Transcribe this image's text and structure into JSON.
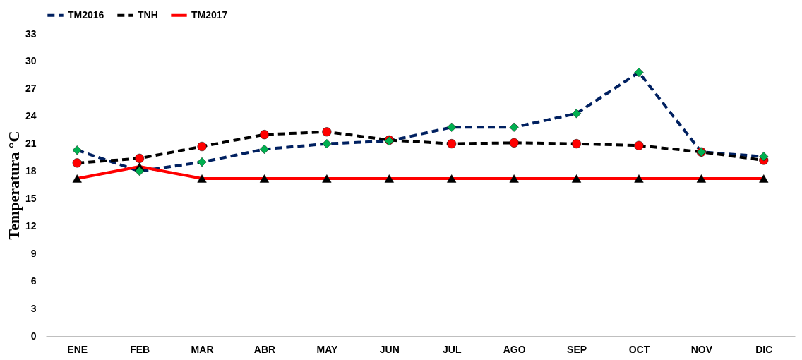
{
  "chart_data": {
    "type": "line",
    "ylabel": "Temperatura °C",
    "categories": [
      "ENE",
      "FEB",
      "MAR",
      "ABR",
      "MAY",
      "JUN",
      "JUL",
      "AGO",
      "SEP",
      "OCT",
      "NOV",
      "DIC"
    ],
    "series": [
      {
        "name": "TM2016",
        "color": "#002060",
        "marker": "diamond",
        "colors": [
          "#00b050",
          "#00b050",
          "#00b050",
          "#00b050",
          "#00b050",
          "#00b050",
          "#00b050",
          "#00b050",
          "#00b050",
          "#00b050",
          "#00b050",
          "#00b050"
        ],
        "line_style": "dashed",
        "values": [
          20.3,
          18.0,
          19.0,
          20.4,
          21.0,
          21.3,
          22.8,
          22.8,
          24.3,
          28.8,
          20.1,
          19.6
        ]
      },
      {
        "name": "TNH",
        "color": "#000000",
        "marker": "circle",
        "colors": [
          "#ff0000",
          "#ff0000",
          "#ff0000",
          "#ff0000",
          "#ff0000",
          "#ff0000",
          "#ff0000",
          "#ff0000",
          "#ff0000",
          "#ff0000",
          "#ff0000",
          "#ff0000"
        ],
        "line_style": "dashed",
        "values": [
          18.9,
          19.4,
          20.7,
          22.0,
          22.3,
          21.4,
          21.0,
          21.1,
          21.0,
          20.8,
          20.1,
          19.2
        ]
      },
      {
        "name": "TM2017",
        "color": "#ff0000",
        "marker": "triangle",
        "colors": [
          "#000000",
          "#000000",
          "#000000",
          "#000000",
          "#000000",
          "#000000",
          "#000000",
          "#000000",
          "#000000",
          "#000000",
          "#000000",
          "#000000"
        ],
        "line_style": "solid",
        "values": [
          17.2,
          18.5,
          17.2,
          17.2,
          17.2,
          17.2,
          17.2,
          17.2,
          17.2,
          17.2,
          17.2,
          17.2
        ]
      }
    ],
    "ylim": [
      0,
      33
    ],
    "yticks": [
      0,
      3,
      6,
      9,
      12,
      15,
      18,
      21,
      24,
      27,
      30,
      33
    ],
    "grid": false,
    "legend": "top"
  }
}
